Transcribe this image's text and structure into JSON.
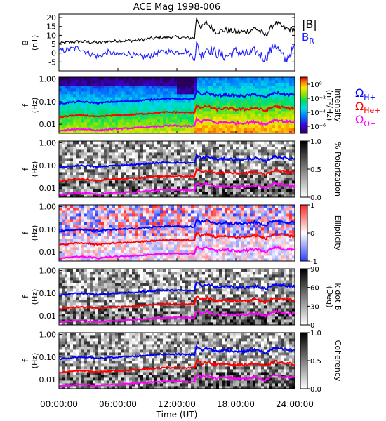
{
  "chart_data": {
    "type": "line",
    "title": "ACE Mag 1998-006",
    "xlabel": "Time (UT)",
    "x_ticks": [
      "00:00:00",
      "06:00:00",
      "12:00:00",
      "18:00:00",
      "24:00:00"
    ],
    "x_tick_hours": [
      0,
      6,
      12,
      18,
      24
    ],
    "xlim_hours": [
      0,
      24
    ],
    "colors": {
      "b_total": "#000000",
      "b_r": "#1a1aff",
      "h_plus": "#0000ff",
      "he_plus": "#ff0000",
      "o_plus": "#ff00ff"
    },
    "field_panel": {
      "ylabel": "B",
      "yunit": "(nT)",
      "ylim": [
        -10,
        22
      ],
      "y_ticks": [
        "20",
        "15",
        "10",
        "5",
        "0",
        "-5"
      ],
      "y_tick_values": [
        20,
        15,
        10,
        5,
        0,
        -5
      ],
      "legend": {
        "b_total": "|B|",
        "b_r": "B",
        "b_r_sub": "R"
      },
      "series": [
        {
          "key": "b_total",
          "x_hours": [
            0,
            1,
            2,
            3,
            4,
            5,
            6,
            7,
            8,
            9,
            10,
            11,
            12,
            13,
            13.8,
            14,
            14.5,
            15,
            16,
            17,
            18,
            19,
            20,
            21,
            22,
            23,
            24
          ],
          "values": [
            5.5,
            6,
            6.5,
            6.3,
            5.8,
            6.5,
            6.8,
            7,
            7.2,
            8,
            8.5,
            9,
            9,
            8.5,
            8.5,
            20,
            14,
            17,
            12,
            13,
            12,
            12,
            14,
            10,
            17,
            14,
            13
          ]
        },
        {
          "key": "b_r",
          "x_hours": [
            0,
            1,
            2,
            3,
            4,
            5,
            6,
            7,
            8,
            9,
            10,
            11,
            12,
            13,
            13.8,
            14,
            14.5,
            15,
            16,
            17,
            18,
            19,
            20,
            21,
            22,
            23,
            24
          ],
          "values": [
            1,
            2,
            3,
            0,
            -2,
            0.5,
            -1,
            0,
            -2,
            -2,
            0,
            1,
            0.5,
            1,
            -3,
            5,
            -2,
            3,
            0,
            -2,
            1,
            -1,
            1,
            -3,
            5,
            -4,
            3
          ]
        }
      ]
    },
    "spectral_panels": [
      {
        "key": "intensity",
        "cmap": "rainbow",
        "clabel": "Intensity",
        "cunit": "(nT²/Hz)",
        "cbar_ticks": [
          "10⁰",
          "10⁻²",
          "10⁻⁴",
          "10⁻⁶"
        ],
        "cbar_tick_values": [
          0,
          -2,
          -4,
          -6
        ],
        "clim": [
          -7,
          1
        ]
      },
      {
        "key": "polarization",
        "cmap": "gray",
        "clabel": "% Polarization",
        "cunit": "",
        "cbar_ticks": [
          "1.0",
          "0.5",
          "0.0"
        ],
        "cbar_tick_values": [
          1,
          0.5,
          0
        ],
        "clim": [
          0,
          1
        ]
      },
      {
        "key": "ellipticity",
        "cmap": "bwr",
        "clabel": "Ellipticity",
        "cunit": "",
        "cbar_ticks": [
          "1",
          "0",
          "-1"
        ],
        "cbar_tick_values": [
          1,
          0,
          -1
        ],
        "clim": [
          -1,
          1
        ]
      },
      {
        "key": "kdotb",
        "cmap": "gray",
        "clabel": "k dot B",
        "cunit": "(Deg)",
        "cbar_ticks": [
          "90",
          "60",
          "30",
          "0"
        ],
        "cbar_tick_values": [
          90,
          60,
          30,
          0
        ],
        "clim": [
          0,
          90
        ]
      },
      {
        "key": "coherency",
        "cmap": "gray",
        "clabel": "Coherency",
        "cunit": "",
        "cbar_ticks": [
          "1.0",
          "0.5",
          "0.0"
        ],
        "cbar_tick_values": [
          1,
          0.5,
          0
        ],
        "clim": [
          0,
          1
        ]
      }
    ],
    "spectral_ylabel": "f",
    "spectral_yunit": "(Hz)",
    "spectral_ylim": [
      0.004,
      1.2
    ],
    "y_ticks": [
      "1.00",
      "0.10",
      "0.01"
    ],
    "y_tick_values": [
      1.0,
      0.1,
      0.01
    ],
    "gyro_legend": [
      {
        "key": "h_plus",
        "symbol": "Ω",
        "sub": "H+"
      },
      {
        "key": "he_plus",
        "symbol": "Ω",
        "sub": "He+"
      },
      {
        "key": "o_plus",
        "symbol": "Ω",
        "sub": "O+"
      }
    ],
    "gyrofrequencies_hz": {
      "x_hours": [
        0,
        1,
        2,
        3,
        4,
        5,
        6,
        7,
        8,
        9,
        10,
        11,
        12,
        13,
        13.8,
        14,
        14.5,
        15,
        16,
        17,
        18,
        19,
        20,
        21,
        22,
        23,
        24
      ],
      "h_plus": [
        0.08,
        0.09,
        0.1,
        0.095,
        0.085,
        0.095,
        0.1,
        0.105,
        0.11,
        0.12,
        0.13,
        0.135,
        0.135,
        0.13,
        0.13,
        0.28,
        0.2,
        0.25,
        0.18,
        0.2,
        0.18,
        0.18,
        0.21,
        0.15,
        0.25,
        0.21,
        0.2
      ],
      "he_plus": [
        0.02,
        0.023,
        0.025,
        0.024,
        0.021,
        0.024,
        0.025,
        0.026,
        0.028,
        0.03,
        0.032,
        0.034,
        0.034,
        0.033,
        0.033,
        0.07,
        0.05,
        0.063,
        0.045,
        0.05,
        0.045,
        0.046,
        0.053,
        0.038,
        0.063,
        0.053,
        0.05
      ],
      "o_plus": [
        0.005,
        0.0057,
        0.0062,
        0.006,
        0.0053,
        0.006,
        0.0063,
        0.0066,
        0.007,
        0.0075,
        0.008,
        0.0085,
        0.0085,
        0.0082,
        0.0082,
        0.0175,
        0.0125,
        0.016,
        0.0112,
        0.0125,
        0.0112,
        0.0115,
        0.013,
        0.0095,
        0.016,
        0.013,
        0.0125
      ]
    }
  }
}
